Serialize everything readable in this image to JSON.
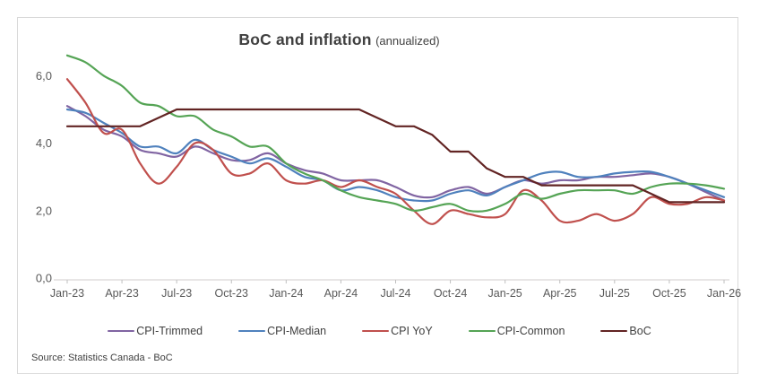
{
  "figure": {
    "title": "BoC and inflation",
    "subtitle": "(annualized)",
    "source": "Source: Statistics Canada - BoC"
  },
  "chart_data": {
    "type": "line",
    "title": "BoC and inflation",
    "subtitle": "(annualized)",
    "xlabel": "",
    "ylabel": "",
    "ylim": [
      0,
      6.9
    ],
    "grid": false,
    "legend_position": "bottom",
    "axis_color": "#D0CECE",
    "tick_color": "#BFBFBF",
    "label_color": "#595959",
    "x_categories": [
      "Jan-23",
      "Feb-23",
      "Mar-23",
      "Apr-23",
      "May-23",
      "Jun-23",
      "Jul-23",
      "Aug-23",
      "Sep-23",
      "Oct-23",
      "Nov-23",
      "Dec-23",
      "Jan-24",
      "Feb-24",
      "Mar-24",
      "Apr-24",
      "May-24",
      "Jun-24",
      "Jul-24",
      "Aug-24",
      "Sep-24",
      "Oct-24",
      "Nov-24",
      "Dec-24",
      "Jan-25",
      "Feb-25",
      "Mar-25",
      "Apr-25",
      "May-25",
      "Jun-25",
      "Jul-25",
      "Aug-25",
      "Sep-25",
      "Oct-25",
      "Nov-25",
      "Dec-25",
      "Jan-26"
    ],
    "x_tick_every": 3,
    "x_tick_labels": [
      "Jan-23",
      "Apr-23",
      "Jul-23",
      "Oct-23",
      "Jan-24",
      "Apr-24",
      "Jul-24",
      "Oct-24",
      "Jan-25",
      "Apr-25",
      "Jul-25",
      "Oct-25",
      "Jan-26"
    ],
    "y_ticks": [
      {
        "value": 0,
        "label": "0,0"
      },
      {
        "value": 2,
        "label": "2,0"
      },
      {
        "value": 4,
        "label": "4,0"
      },
      {
        "value": 6,
        "label": "6,0"
      }
    ],
    "series": [
      {
        "name": "CPI-Trimmed",
        "color": "#8064A2",
        "smooth": true,
        "values": [
          5.1,
          4.8,
          4.4,
          4.2,
          3.8,
          3.7,
          3.6,
          3.9,
          3.7,
          3.5,
          3.5,
          3.7,
          3.4,
          3.2,
          3.1,
          2.9,
          2.9,
          2.9,
          2.7,
          2.45,
          2.4,
          2.6,
          2.7,
          2.5,
          2.7,
          2.9,
          2.8,
          2.9,
          2.9,
          3.0,
          3.0,
          3.05,
          3.1,
          3.0,
          2.8,
          2.55,
          2.3
        ]
      },
      {
        "name": "CPI-Median",
        "color": "#4F81BD",
        "smooth": true,
        "values": [
          5.0,
          4.9,
          4.6,
          4.3,
          3.9,
          3.9,
          3.7,
          4.1,
          3.8,
          3.6,
          3.4,
          3.55,
          3.3,
          3.0,
          2.9,
          2.6,
          2.7,
          2.6,
          2.4,
          2.3,
          2.3,
          2.5,
          2.6,
          2.45,
          2.7,
          2.9,
          3.1,
          3.15,
          3.0,
          3.0,
          3.1,
          3.15,
          3.15,
          3.0,
          2.8,
          2.6,
          2.4
        ]
      },
      {
        "name": "CPI YoY",
        "color": "#C0504D",
        "smooth": true,
        "values": [
          5.9,
          5.2,
          4.3,
          4.4,
          3.4,
          2.8,
          3.3,
          4.0,
          3.8,
          3.1,
          3.1,
          3.4,
          2.9,
          2.8,
          2.9,
          2.7,
          2.9,
          2.7,
          2.5,
          2.0,
          1.6,
          2.0,
          1.9,
          1.8,
          1.9,
          2.6,
          2.3,
          1.7,
          1.7,
          1.9,
          1.7,
          1.9,
          2.4,
          2.2,
          2.2,
          2.4,
          2.3
        ]
      },
      {
        "name": "CPI-Common",
        "color": "#55A455",
        "smooth": true,
        "values": [
          6.6,
          6.4,
          6.0,
          5.7,
          5.2,
          5.1,
          4.8,
          4.8,
          4.4,
          4.2,
          3.9,
          3.9,
          3.4,
          3.1,
          2.9,
          2.6,
          2.4,
          2.3,
          2.2,
          2.0,
          2.1,
          2.2,
          2.0,
          2.0,
          2.2,
          2.5,
          2.35,
          2.5,
          2.6,
          2.6,
          2.6,
          2.5,
          2.7,
          2.8,
          2.8,
          2.75,
          2.65
        ]
      },
      {
        "name": "BoC",
        "color": "#622423",
        "smooth": false,
        "values": [
          4.5,
          4.5,
          4.5,
          4.5,
          4.5,
          4.75,
          5.0,
          5.0,
          5.0,
          5.0,
          5.0,
          5.0,
          5.0,
          5.0,
          5.0,
          5.0,
          5.0,
          4.75,
          4.5,
          4.5,
          4.25,
          3.75,
          3.75,
          3.25,
          3.0,
          3.0,
          2.75,
          2.75,
          2.75,
          2.75,
          2.75,
          2.75,
          2.5,
          2.25,
          2.25,
          2.25,
          2.25
        ]
      }
    ],
    "source": "Source: Statistics Canada - BoC"
  }
}
